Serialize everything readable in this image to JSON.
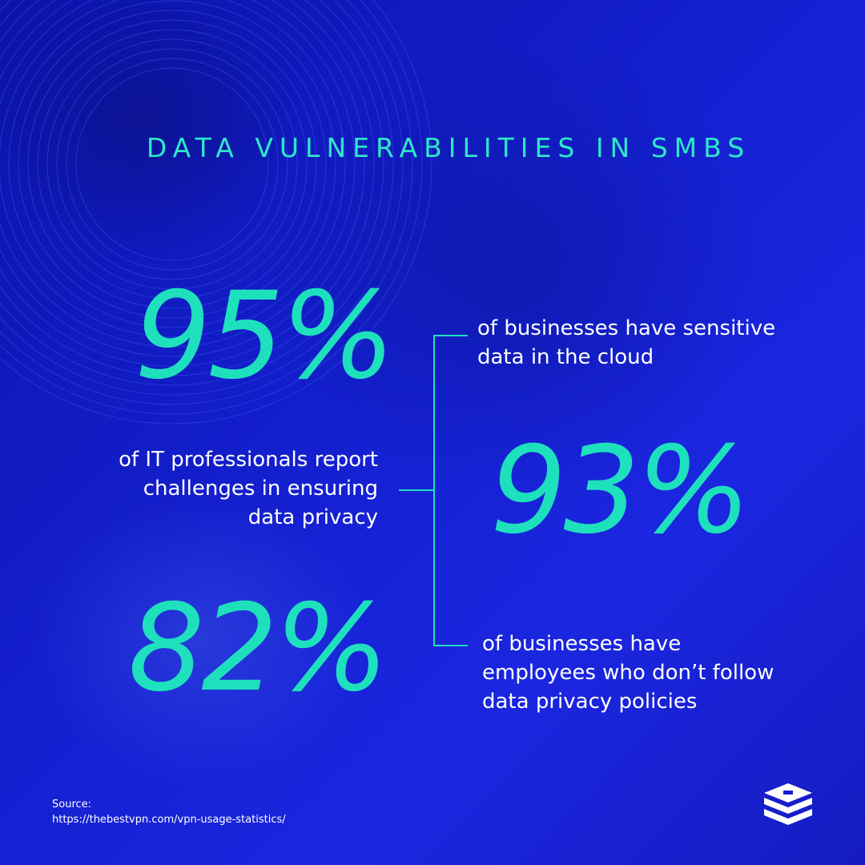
{
  "title": "DATA VULNERABILITIES IN SMBS",
  "stats": [
    {
      "value": "95%",
      "description_lines": [
        "of businesses have sensitive",
        "data in the cloud"
      ]
    },
    {
      "value": "93%",
      "description_lines": [
        "of IT professionals report",
        "challenges in ensuring",
        "data privacy"
      ]
    },
    {
      "value": "82%",
      "description_lines": [
        "of businesses have",
        "employees who don’t follow",
        "data privacy policies"
      ]
    }
  ],
  "source": {
    "label": "Source:",
    "url": "https://thebestvpn.com/vpn-usage-statistics/"
  },
  "colors": {
    "accent": "#1fe0bd",
    "background": "#1420d0",
    "text": "#ffffff"
  },
  "logo": {
    "icon": "stacked-layers-icon"
  }
}
